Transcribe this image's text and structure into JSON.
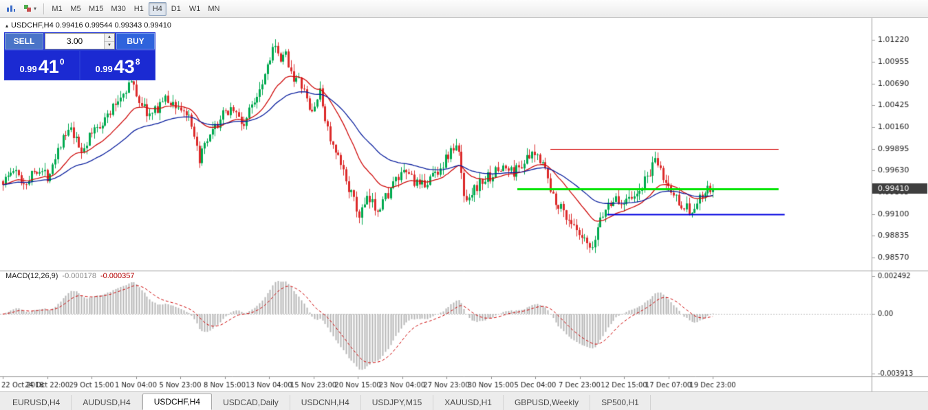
{
  "toolbar": {
    "timeframes": [
      "M1",
      "M5",
      "M15",
      "M30",
      "H1",
      "H4",
      "D1",
      "W1",
      "MN"
    ],
    "active_timeframe": "H4"
  },
  "header": {
    "collapse_icon": "▴",
    "ohlc": "USDCHF,H4 0.99416 0.99544 0.99343 0.99410"
  },
  "trade_panel": {
    "sell_label": "SELL",
    "buy_label": "BUY",
    "lot_size": "3.00",
    "spin_up": "▲",
    "spin_down": "▼",
    "sell_price_prefix": "0.99",
    "sell_price_big": "41",
    "sell_price_sup": "0",
    "buy_price_prefix": "0.99",
    "buy_price_big": "43",
    "buy_price_sup": "8"
  },
  "macd_label": {
    "name": "MACD(12,26,9)",
    "main_value": "-0.000178",
    "signal_value": "-0.000357"
  },
  "tabs": {
    "items": [
      "EURUSD,H4",
      "AUDUSD,H4",
      "USDCHF,H4",
      "USDCAD,Daily",
      "USDCNH,H4",
      "USDJPY,M15",
      "XAUUSD,H1",
      "GBPUSD,Weekly",
      "SP500,H1"
    ],
    "active": "USDCHF,H4"
  },
  "chart_data": {
    "type": "candlestick",
    "symbol": "USDCHF",
    "timeframe": "H4",
    "y_min": 0.9846,
    "y_max": 1.0144,
    "y_ticks": [
      1.0122,
      1.00955,
      1.0069,
      1.00425,
      1.0016,
      0.99895,
      0.9963,
      0.99365,
      0.991,
      0.98835,
      0.9857
    ],
    "current_price": 0.9941,
    "num_candles": 272,
    "seed": 1337,
    "wiggle": 0.0007,
    "wick_extra": 0.0009,
    "up_color": "#00a94f",
    "down_color": "#dc2a2a",
    "ma_fast": {
      "period": 20,
      "color": "#cf0a0a"
    },
    "ma_slow": {
      "period": 45,
      "color": "#0a1f9e"
    },
    "hlines": [
      {
        "price": 0.99895,
        "color": "#d40000",
        "width": 1,
        "x0": 0.632,
        "x1": 0.894
      },
      {
        "price": 0.9941,
        "color": "#00e400",
        "width": 3,
        "x0": 0.594,
        "x1": 0.894
      },
      {
        "price": 0.991,
        "color": "#0000e0",
        "width": 2,
        "x0": 0.697,
        "x1": 0.901
      }
    ],
    "price_path": [
      [
        0.0,
        0.995
      ],
      [
        0.015,
        0.9963
      ],
      [
        0.03,
        0.9947
      ],
      [
        0.048,
        0.9966
      ],
      [
        0.063,
        0.9956
      ],
      [
        0.08,
        0.9996
      ],
      [
        0.095,
        1.0012
      ],
      [
        0.11,
        0.9986
      ],
      [
        0.128,
        1.0012
      ],
      [
        0.148,
        1.003
      ],
      [
        0.168,
        1.0056
      ],
      [
        0.18,
        1.0072
      ],
      [
        0.193,
        1.0047
      ],
      [
        0.208,
        1.0028
      ],
      [
        0.226,
        1.005
      ],
      [
        0.243,
        1.0043
      ],
      [
        0.26,
        1.0031
      ],
      [
        0.276,
        0.9977
      ],
      [
        0.29,
        1.0
      ],
      [
        0.308,
        1.0028
      ],
      [
        0.323,
        1.0041
      ],
      [
        0.338,
        1.0017
      ],
      [
        0.353,
        1.0047
      ],
      [
        0.368,
        1.0079
      ],
      [
        0.381,
        1.0117
      ],
      [
        0.39,
        1.0094
      ],
      [
        0.399,
        1.0104
      ],
      [
        0.409,
        1.0077
      ],
      [
        0.421,
        1.0067
      ],
      [
        0.434,
        1.0031
      ],
      [
        0.446,
        1.0059
      ],
      [
        0.455,
        1.0023
      ],
      [
        0.464,
        0.9991
      ],
      [
        0.477,
        0.9967
      ],
      [
        0.489,
        0.9939
      ],
      [
        0.501,
        0.9907
      ],
      [
        0.514,
        0.9927
      ],
      [
        0.527,
        0.9917
      ],
      [
        0.539,
        0.9931
      ],
      [
        0.554,
        0.9951
      ],
      [
        0.571,
        0.9961
      ],
      [
        0.587,
        0.9941
      ],
      [
        0.601,
        0.9954
      ],
      [
        0.617,
        0.9967
      ],
      [
        0.631,
        0.9987
      ],
      [
        0.641,
        0.9991
      ],
      [
        0.65,
        0.9929
      ],
      [
        0.661,
        0.9938
      ],
      [
        0.674,
        0.9949
      ],
      [
        0.689,
        0.9958
      ],
      [
        0.704,
        0.9967
      ],
      [
        0.719,
        0.9961
      ],
      [
        0.734,
        0.9974
      ],
      [
        0.749,
        0.9981
      ],
      [
        0.761,
        0.9977
      ],
      [
        0.771,
        0.9937
      ],
      [
        0.781,
        0.9924
      ],
      [
        0.791,
        0.9911
      ],
      [
        0.801,
        0.9899
      ],
      [
        0.811,
        0.9881
      ],
      [
        0.821,
        0.9874
      ],
      [
        0.83,
        0.9862
      ],
      [
        0.84,
        0.9904
      ],
      [
        0.85,
        0.9917
      ],
      [
        0.86,
        0.9929
      ],
      [
        0.871,
        0.9921
      ],
      [
        0.881,
        0.9937
      ],
      [
        0.89,
        0.9927
      ],
      [
        0.9,
        0.9944
      ],
      [
        0.911,
        0.9961
      ],
      [
        0.921,
        0.9974
      ],
      [
        0.931,
        0.9951
      ],
      [
        0.941,
        0.9937
      ],
      [
        0.951,
        0.9927
      ],
      [
        0.961,
        0.9919
      ],
      [
        0.971,
        0.9911
      ],
      [
        0.981,
        0.9927
      ],
      [
        0.991,
        0.9937
      ],
      [
        1.0,
        0.9941
      ]
    ],
    "x_labels": [
      "22 Oct 2018",
      "24 Oct 22:00",
      "29 Oct 15:00",
      "1 Nov 04:00",
      "5 Nov 23:00",
      "8 Nov 15:00",
      "13 Nov 04:00",
      "15 Nov 23:00",
      "20 Nov 15:00",
      "23 Nov 04:00",
      "27 Nov 23:00",
      "30 Nov 15:00",
      "5 Dec 04:00",
      "7 Dec 23:00",
      "12 Dec 15:00",
      "17 Dec 07:00",
      "19 Dec 23:00"
    ],
    "macd": {
      "fast": 12,
      "slow": 26,
      "signal": 9,
      "y_top": 0.002492,
      "y_bottom": -0.003913,
      "ticks": [
        "0.002492",
        "0.00",
        "-0.003913"
      ],
      "hist_color": "#b6b6b6",
      "signal_color": "#cc0000"
    }
  }
}
